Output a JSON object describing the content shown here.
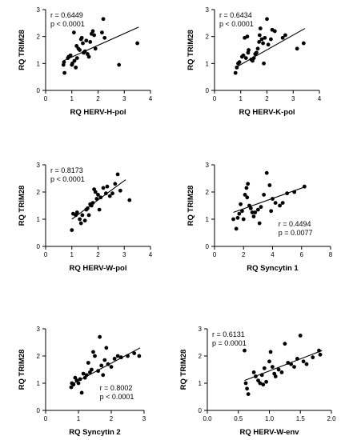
{
  "chart_data": [
    {
      "type": "scatter",
      "xlabel": "RQ HERV-H-pol",
      "ylabel": "RQ TRIM28",
      "xlim": [
        0,
        4
      ],
      "ylim": [
        0,
        3
      ],
      "xticks": [
        0,
        1,
        2,
        3,
        4
      ],
      "yticks": [
        0,
        1,
        2,
        3
      ],
      "tick_labels_x": [
        "0",
        "1",
        "2",
        "3",
        "4"
      ],
      "tick_labels_y": [
        "0",
        "1",
        "2",
        "3"
      ],
      "annotation": {
        "r": "r = 0.6449",
        "p": "p < 0.0001",
        "position": "top-left"
      },
      "regression": {
        "x": [
          0.68,
          3.55
        ],
        "y": [
          1.1,
          2.35
        ]
      },
      "points": [
        [
          0.68,
          0.95
        ],
        [
          0.7,
          1.05
        ],
        [
          0.72,
          0.65
        ],
        [
          0.85,
          1.2
        ],
        [
          0.88,
          1.25
        ],
        [
          0.95,
          1.3
        ],
        [
          1.0,
          0.95
        ],
        [
          1.02,
          1.0
        ],
        [
          1.08,
          2.15
        ],
        [
          1.1,
          1.1
        ],
        [
          1.15,
          0.85
        ],
        [
          1.18,
          1.65
        ],
        [
          1.2,
          1.2
        ],
        [
          1.25,
          1.55
        ],
        [
          1.3,
          1.5
        ],
        [
          1.35,
          1.9
        ],
        [
          1.38,
          1.95
        ],
        [
          1.42,
          1.75
        ],
        [
          1.45,
          1.4
        ],
        [
          1.5,
          1.45
        ],
        [
          1.55,
          1.85
        ],
        [
          1.6,
          1.35
        ],
        [
          1.65,
          1.25
        ],
        [
          1.7,
          1.8
        ],
        [
          1.75,
          2.1
        ],
        [
          1.8,
          2.2
        ],
        [
          1.85,
          2.05
        ],
        [
          1.9,
          1.55
        ],
        [
          2.15,
          2.15
        ],
        [
          2.2,
          2.65
        ],
        [
          2.25,
          1.95
        ],
        [
          2.8,
          0.95
        ],
        [
          3.5,
          1.75
        ]
      ]
    },
    {
      "type": "scatter",
      "xlabel": "RQ HERV-K-pol",
      "ylabel": "RQ TRIM28",
      "xlim": [
        0,
        4
      ],
      "ylim": [
        0,
        3
      ],
      "xticks": [
        0,
        1,
        2,
        3,
        4
      ],
      "yticks": [
        0,
        1,
        2,
        3
      ],
      "tick_labels_x": [
        "0",
        "1",
        "2",
        "3",
        "4"
      ],
      "tick_labels_y": [
        "0",
        "1",
        "2",
        "3"
      ],
      "annotation": {
        "r": "r = 0.6434",
        "p": "p < 0.0001",
        "position": "top-left"
      },
      "regression": {
        "x": [
          0.8,
          3.45
        ],
        "y": [
          0.85,
          2.3
        ]
      },
      "points": [
        [
          0.8,
          0.65
        ],
        [
          0.85,
          0.85
        ],
        [
          0.9,
          1.0
        ],
        [
          0.95,
          1.05
        ],
        [
          1.05,
          1.25
        ],
        [
          1.1,
          1.3
        ],
        [
          1.15,
          1.95
        ],
        [
          1.2,
          1.2
        ],
        [
          1.25,
          2.0
        ],
        [
          1.28,
          1.4
        ],
        [
          1.3,
          1.5
        ],
        [
          1.4,
          1.15
        ],
        [
          1.45,
          1.1
        ],
        [
          1.5,
          1.2
        ],
        [
          1.55,
          1.35
        ],
        [
          1.6,
          1.4
        ],
        [
          1.65,
          1.55
        ],
        [
          1.7,
          1.8
        ],
        [
          1.72,
          2.05
        ],
        [
          1.75,
          2.3
        ],
        [
          1.8,
          1.9
        ],
        [
          1.85,
          1.75
        ],
        [
          1.88,
          1.0
        ],
        [
          1.92,
          1.95
        ],
        [
          2.0,
          2.65
        ],
        [
          2.05,
          1.7
        ],
        [
          2.15,
          1.9
        ],
        [
          2.2,
          2.25
        ],
        [
          2.3,
          2.2
        ],
        [
          2.6,
          1.95
        ],
        [
          2.7,
          2.05
        ],
        [
          3.15,
          1.55
        ],
        [
          3.4,
          1.75
        ]
      ]
    },
    {
      "type": "scatter",
      "xlabel": "RQ HERV-W-pol",
      "ylabel": "RQ TRIM28",
      "xlim": [
        0,
        4
      ],
      "ylim": [
        0,
        3
      ],
      "xticks": [
        0,
        1,
        2,
        3,
        4
      ],
      "yticks": [
        0,
        1,
        2,
        3
      ],
      "tick_labels_x": [
        "0",
        "1",
        "2",
        "3",
        "4"
      ],
      "tick_labels_y": [
        "0",
        "1",
        "2",
        "3"
      ],
      "annotation": {
        "r": "r = 0.8173",
        "p": "p < 0.0001",
        "position": "top-left"
      },
      "regression": {
        "x": [
          1.0,
          3.05
        ],
        "y": [
          1.0,
          2.45
        ]
      },
      "points": [
        [
          1.0,
          0.6
        ],
        [
          1.05,
          1.2
        ],
        [
          1.15,
          1.15
        ],
        [
          1.2,
          1.25
        ],
        [
          1.3,
          1.0
        ],
        [
          1.35,
          0.85
        ],
        [
          1.4,
          1.15
        ],
        [
          1.5,
          0.95
        ],
        [
          1.55,
          1.35
        ],
        [
          1.6,
          1.4
        ],
        [
          1.65,
          1.15
        ],
        [
          1.7,
          1.55
        ],
        [
          1.75,
          1.5
        ],
        [
          1.8,
          1.6
        ],
        [
          1.85,
          2.1
        ],
        [
          1.9,
          2.0
        ],
        [
          1.95,
          1.75
        ],
        [
          2.0,
          1.9
        ],
        [
          2.05,
          1.35
        ],
        [
          2.1,
          1.8
        ],
        [
          2.2,
          2.15
        ],
        [
          2.3,
          1.95
        ],
        [
          2.35,
          2.2
        ],
        [
          2.45,
          1.85
        ],
        [
          2.55,
          1.95
        ],
        [
          2.65,
          2.3
        ],
        [
          2.75,
          2.65
        ],
        [
          2.85,
          2.05
        ],
        [
          3.2,
          1.7
        ]
      ]
    },
    {
      "type": "scatter",
      "xlabel": "RQ Syncytin 1",
      "ylabel": "RQ TRIM28",
      "xlim": [
        0,
        8
      ],
      "ylim": [
        0,
        3
      ],
      "xticks": [
        0,
        2,
        4,
        6,
        8
      ],
      "yticks": [
        0,
        1,
        2,
        3
      ],
      "tick_labels_x": [
        "0",
        "2",
        "4",
        "6",
        "8"
      ],
      "tick_labels_y": [
        "0",
        "1",
        "2",
        "3"
      ],
      "annotation": {
        "r": "r = 0.4494",
        "p": "p = 0.0077",
        "position": "bottom-right"
      },
      "regression": {
        "x": [
          1.3,
          6.3
        ],
        "y": [
          1.25,
          2.2
        ]
      },
      "points": [
        [
          1.3,
          1.0
        ],
        [
          1.5,
          0.65
        ],
        [
          1.6,
          1.05
        ],
        [
          1.7,
          1.2
        ],
        [
          1.8,
          1.55
        ],
        [
          1.9,
          1.3
        ],
        [
          2.0,
          1.0
        ],
        [
          2.1,
          1.9
        ],
        [
          2.2,
          2.15
        ],
        [
          2.25,
          1.8
        ],
        [
          2.3,
          2.3
        ],
        [
          2.4,
          1.5
        ],
        [
          2.5,
          1.4
        ],
        [
          2.6,
          1.25
        ],
        [
          2.7,
          1.1
        ],
        [
          2.8,
          1.25
        ],
        [
          3.0,
          1.35
        ],
        [
          3.1,
          0.85
        ],
        [
          3.2,
          1.45
        ],
        [
          3.4,
          1.9
        ],
        [
          3.6,
          2.7
        ],
        [
          3.8,
          2.25
        ],
        [
          3.9,
          1.3
        ],
        [
          4.0,
          1.75
        ],
        [
          4.2,
          1.6
        ],
        [
          4.5,
          1.5
        ],
        [
          4.7,
          1.6
        ],
        [
          5.0,
          1.95
        ],
        [
          5.5,
          2.0
        ],
        [
          6.2,
          2.2
        ]
      ]
    },
    {
      "type": "scatter",
      "xlabel": "RQ Syncytin 2",
      "ylabel": "RQ TRIM28",
      "xlim": [
        0,
        3
      ],
      "ylim": [
        0,
        3
      ],
      "xticks": [
        0,
        1,
        2,
        3
      ],
      "yticks": [
        0,
        1,
        2,
        3
      ],
      "tick_labels_x": [
        "0",
        "1",
        "2",
        "3"
      ],
      "tick_labels_y": [
        "0",
        "1",
        "2",
        "3"
      ],
      "annotation": {
        "r": "r = 0.8002",
        "p": "p < 0.0001",
        "position": "bottom-right"
      },
      "regression": {
        "x": [
          0.78,
          2.88
        ],
        "y": [
          0.95,
          2.3
        ]
      },
      "points": [
        [
          0.78,
          0.85
        ],
        [
          0.8,
          1.0
        ],
        [
          0.85,
          0.95
        ],
        [
          0.9,
          1.2
        ],
        [
          0.95,
          1.1
        ],
        [
          1.0,
          1.0
        ],
        [
          1.05,
          1.15
        ],
        [
          1.1,
          0.65
        ],
        [
          1.15,
          1.35
        ],
        [
          1.2,
          1.2
        ],
        [
          1.25,
          1.3
        ],
        [
          1.3,
          1.75
        ],
        [
          1.35,
          1.4
        ],
        [
          1.4,
          1.5
        ],
        [
          1.45,
          2.15
        ],
        [
          1.5,
          2.0
        ],
        [
          1.6,
          1.45
        ],
        [
          1.65,
          2.7
        ],
        [
          1.7,
          1.65
        ],
        [
          1.75,
          1.3
        ],
        [
          1.8,
          1.85
        ],
        [
          1.85,
          2.3
        ],
        [
          1.9,
          1.7
        ],
        [
          2.0,
          1.6
        ],
        [
          2.1,
          1.9
        ],
        [
          2.2,
          2.0
        ],
        [
          2.3,
          1.95
        ],
        [
          2.5,
          2.0
        ],
        [
          2.7,
          2.1
        ],
        [
          2.85,
          2.0
        ]
      ]
    },
    {
      "type": "scatter",
      "xlabel": "RQ HERV-W-env",
      "ylabel": "RQ TRIM28",
      "xlim": [
        0,
        2
      ],
      "ylim": [
        0,
        3
      ],
      "xticks": [
        0,
        0.5,
        1,
        1.5,
        2
      ],
      "yticks": [
        0,
        1,
        2,
        3
      ],
      "tick_labels_x": [
        "0.0",
        "0.5",
        "1.0",
        "1.5",
        "2.0"
      ],
      "tick_labels_y": [
        "0",
        "1",
        "2",
        "3"
      ],
      "annotation": {
        "r": "r = 0.6131",
        "p": "p = 0.0001",
        "position": "top-left"
      },
      "regression": {
        "x": [
          0.6,
          1.85
        ],
        "y": [
          1.1,
          2.2
        ]
      },
      "points": [
        [
          0.6,
          2.2
        ],
        [
          0.62,
          1.0
        ],
        [
          0.64,
          0.8
        ],
        [
          0.66,
          0.6
        ],
        [
          0.75,
          1.4
        ],
        [
          0.78,
          1.25
        ],
        [
          0.82,
          1.1
        ],
        [
          0.85,
          1.0
        ],
        [
          0.88,
          1.3
        ],
        [
          0.9,
          0.95
        ],
        [
          0.92,
          1.55
        ],
        [
          0.95,
          1.05
        ],
        [
          1.0,
          1.8
        ],
        [
          1.02,
          2.15
        ],
        [
          1.05,
          1.6
        ],
        [
          1.08,
          1.35
        ],
        [
          1.1,
          1.25
        ],
        [
          1.15,
          1.5
        ],
        [
          1.2,
          1.4
        ],
        [
          1.25,
          2.45
        ],
        [
          1.3,
          1.75
        ],
        [
          1.35,
          1.7
        ],
        [
          1.4,
          1.6
        ],
        [
          1.45,
          1.9
        ],
        [
          1.5,
          2.75
        ],
        [
          1.55,
          1.8
        ],
        [
          1.6,
          1.7
        ],
        [
          1.7,
          1.95
        ],
        [
          1.8,
          2.2
        ],
        [
          1.82,
          2.05
        ]
      ]
    }
  ]
}
